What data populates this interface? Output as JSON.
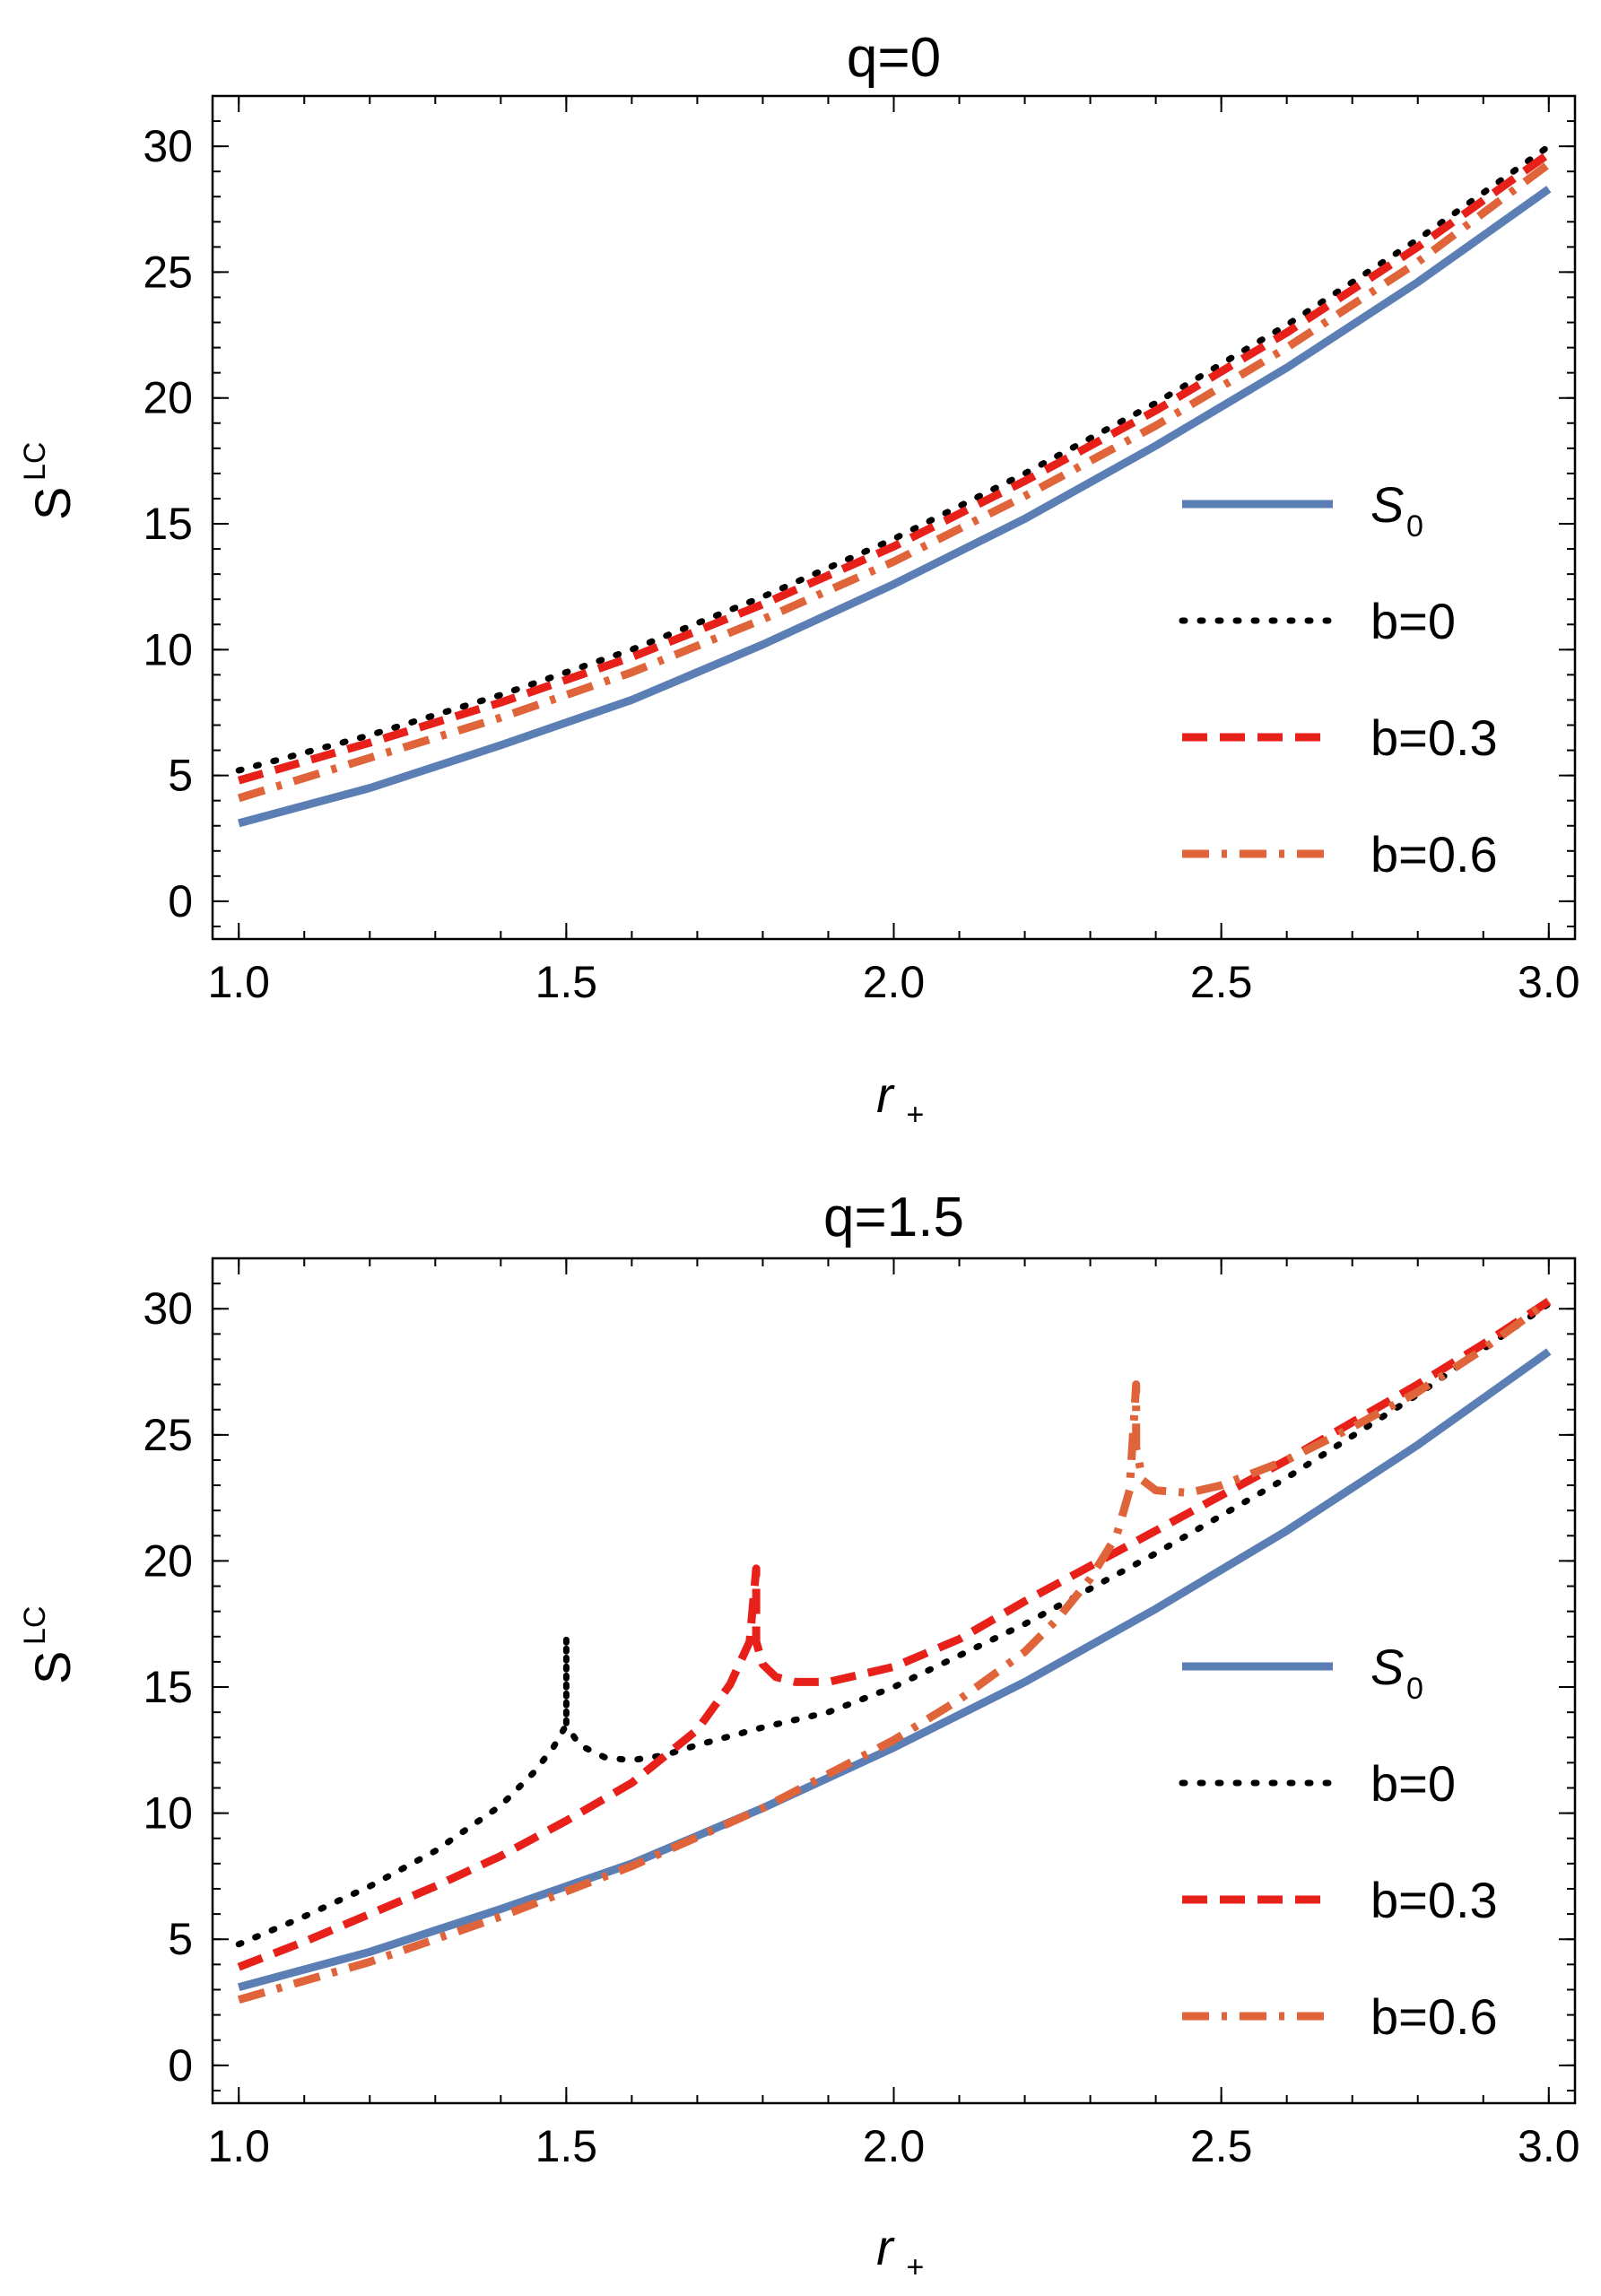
{
  "chart_data": [
    {
      "type": "line",
      "title": "q=0",
      "xlabel": "r",
      "xlabel_sub": "+",
      "ylabel": "S",
      "ylabel_sup": "LC",
      "xlim": [
        0.96,
        3.04
      ],
      "ylim": [
        -1.5,
        32
      ],
      "xticks": [
        1.0,
        1.5,
        2.0,
        2.5,
        3.0
      ],
      "xtick_labels": [
        "1.0",
        "1.5",
        "2.0",
        "2.5",
        "3.0"
      ],
      "yticks": [
        0,
        5,
        10,
        15,
        20,
        25,
        30
      ],
      "ytick_labels": [
        "0",
        "5",
        "10",
        "15",
        "20",
        "25",
        "30"
      ],
      "grid": false,
      "legend_position": "right",
      "series": [
        {
          "name": "S",
          "name_sub": "0",
          "color": "#5b7fb5",
          "style": "solid",
          "x": [
            1.0,
            1.2,
            1.4,
            1.6,
            1.8,
            2.0,
            2.2,
            2.4,
            2.6,
            2.8,
            3.0
          ],
          "y": [
            3.1,
            4.5,
            6.2,
            8.0,
            10.2,
            12.6,
            15.2,
            18.1,
            21.2,
            24.6,
            28.3
          ]
        },
        {
          "name": "b=0",
          "color": "#000000",
          "style": "dotted",
          "x": [
            1.0,
            1.2,
            1.4,
            1.6,
            1.8,
            2.0,
            2.2,
            2.4,
            2.6,
            2.8,
            3.0
          ],
          "y": [
            5.2,
            6.6,
            8.2,
            10.0,
            12.1,
            14.4,
            17.0,
            19.8,
            22.9,
            26.3,
            30.0
          ]
        },
        {
          "name": "b=0.3",
          "color": "#e8201a",
          "style": "dashed",
          "x": [
            1.0,
            1.2,
            1.4,
            1.6,
            1.8,
            2.0,
            2.2,
            2.4,
            2.6,
            2.8,
            3.0
          ],
          "y": [
            4.8,
            6.3,
            7.9,
            9.7,
            11.8,
            14.1,
            16.7,
            19.5,
            22.6,
            26.0,
            29.7
          ]
        },
        {
          "name": "b=0.6",
          "color": "#e0643a",
          "style": "dashdot",
          "x": [
            1.0,
            1.2,
            1.4,
            1.6,
            1.8,
            2.0,
            2.2,
            2.4,
            2.6,
            2.8,
            3.0
          ],
          "y": [
            4.1,
            5.7,
            7.3,
            9.1,
            11.2,
            13.5,
            16.1,
            18.9,
            22.0,
            25.4,
            29.3
          ]
        }
      ]
    },
    {
      "type": "line",
      "title": "q=1.5",
      "xlabel": "r",
      "xlabel_sub": "+",
      "ylabel": "S",
      "ylabel_sup": "LC",
      "xlim": [
        0.96,
        3.04
      ],
      "ylim": [
        -1.5,
        32
      ],
      "xticks": [
        1.0,
        1.5,
        2.0,
        2.5,
        3.0
      ],
      "xtick_labels": [
        "1.0",
        "1.5",
        "2.0",
        "2.5",
        "3.0"
      ],
      "yticks": [
        0,
        5,
        10,
        15,
        20,
        25,
        30
      ],
      "ytick_labels": [
        "0",
        "5",
        "10",
        "15",
        "20",
        "25",
        "30"
      ],
      "grid": false,
      "legend_position": "right",
      "series": [
        {
          "name": "S",
          "name_sub": "0",
          "color": "#5b7fb5",
          "style": "solid",
          "x": [
            1.0,
            1.2,
            1.4,
            1.6,
            1.8,
            2.0,
            2.2,
            2.4,
            2.6,
            2.8,
            3.0
          ],
          "y": [
            3.1,
            4.5,
            6.2,
            8.0,
            10.2,
            12.6,
            15.2,
            18.1,
            21.2,
            24.6,
            28.3
          ]
        },
        {
          "name": "b=0",
          "color": "#000000",
          "style": "dotted",
          "x": [
            1.0,
            1.1,
            1.2,
            1.3,
            1.4,
            1.45,
            1.48,
            1.5,
            1.5,
            1.5,
            1.52,
            1.56,
            1.6,
            1.65,
            1.7,
            1.8,
            1.9,
            2.0,
            2.2,
            2.4,
            2.6,
            2.8,
            3.0
          ],
          "y": [
            4.8,
            5.9,
            7.1,
            8.5,
            10.3,
            11.6,
            12.6,
            13.5,
            17.0,
            13.5,
            12.7,
            12.2,
            12.1,
            12.3,
            12.7,
            13.4,
            14.0,
            15.0,
            17.5,
            20.3,
            23.3,
            26.6,
            30.2
          ]
        },
        {
          "name": "b=0.3",
          "color": "#e8201a",
          "style": "dashed",
          "x": [
            1.0,
            1.1,
            1.2,
            1.3,
            1.4,
            1.5,
            1.6,
            1.7,
            1.75,
            1.78,
            1.79,
            1.79,
            1.8,
            1.82,
            1.85,
            1.9,
            2.0,
            2.1,
            2.2,
            2.3,
            2.4,
            2.5,
            2.6,
            2.7,
            2.8,
            2.9,
            3.0
          ],
          "y": [
            3.9,
            4.9,
            6.0,
            7.1,
            8.3,
            9.7,
            11.2,
            13.3,
            15.1,
            16.8,
            19.7,
            16.8,
            15.9,
            15.4,
            15.2,
            15.2,
            15.8,
            16.9,
            18.4,
            19.8,
            21.2,
            22.6,
            24.0,
            25.5,
            27.0,
            28.6,
            30.3
          ]
        },
        {
          "name": "b=0.6",
          "color": "#e0643a",
          "style": "dashdot",
          "x": [
            1.0,
            1.2,
            1.4,
            1.6,
            1.8,
            2.0,
            2.1,
            2.2,
            2.25,
            2.3,
            2.34,
            2.36,
            2.37,
            2.37,
            2.38,
            2.4,
            2.45,
            2.5,
            2.6,
            2.7,
            2.8,
            2.9,
            3.0
          ],
          "y": [
            2.6,
            4.1,
            5.9,
            7.9,
            10.2,
            12.9,
            14.5,
            16.4,
            17.7,
            19.3,
            21.0,
            22.8,
            27.0,
            24.5,
            23.2,
            22.8,
            22.7,
            23.0,
            24.0,
            25.3,
            26.7,
            28.4,
            30.3
          ]
        }
      ]
    }
  ]
}
